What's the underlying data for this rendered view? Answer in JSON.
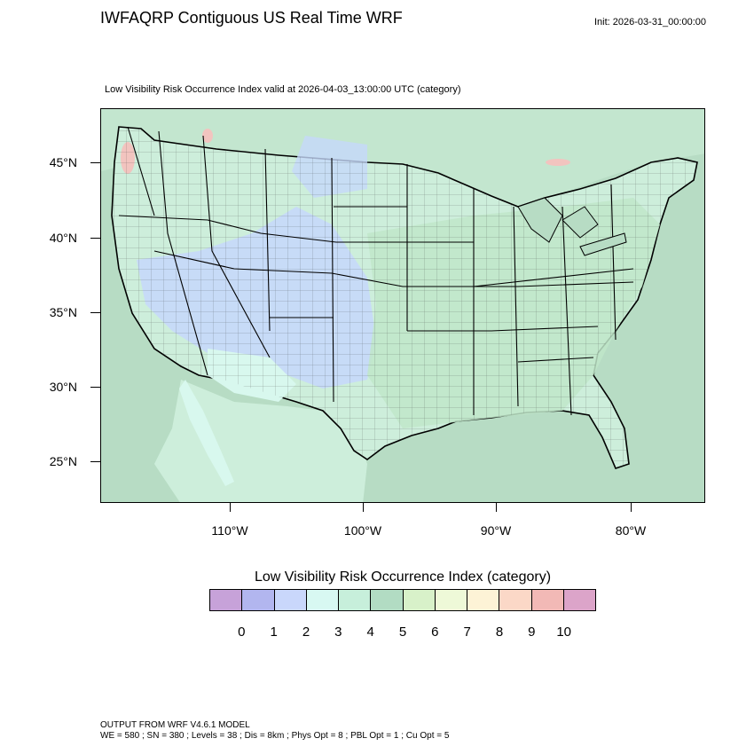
{
  "header": {
    "title": "IWFAQRP Contiguous US Real Time WRF",
    "init": "Init: 2026-03-31_00:00:00",
    "subtitle": "Low Visibility Risk Occurrence Index valid at 2026-04-03_13:00:00 UTC   (category)"
  },
  "map": {
    "lat_labels": [
      "45°N",
      "40°N",
      "35°N",
      "30°N",
      "25°N"
    ],
    "lon_labels": [
      "110°W",
      "100°W",
      "90°W",
      "80°W"
    ],
    "colors": {
      "ocean": "#b7dcc4",
      "land": "#cdeedb",
      "blue_region": "#c6d8fa",
      "cyan_region": "#d8f8ee",
      "green_region": "#bfe6c9",
      "pink_spots": "#f2c4bf"
    }
  },
  "legend": {
    "title": "Low Visibility Risk Occurrence Index  (category)",
    "labels": [
      "0",
      "1",
      "2",
      "3",
      "4",
      "5",
      "6",
      "7",
      "8",
      "9",
      "10"
    ],
    "colors": [
      "#c7a2d9",
      "#b2b6ef",
      "#c9d7fb",
      "#d8f8f2",
      "#c7efdb",
      "#b2dcc3",
      "#d8f1c9",
      "#eef9d8",
      "#fdf3d6",
      "#fbd8c7",
      "#f2b9b6",
      "#dca4c9"
    ]
  },
  "footer": {
    "line1": "OUTPUT FROM WRF V4.6.1 MODEL",
    "line2": "WE = 580 ; SN = 380 ; Levels = 38 ; Dis = 8km ; Phys Opt = 8 ; PBL Opt = 1 ; Cu Opt = 5"
  }
}
